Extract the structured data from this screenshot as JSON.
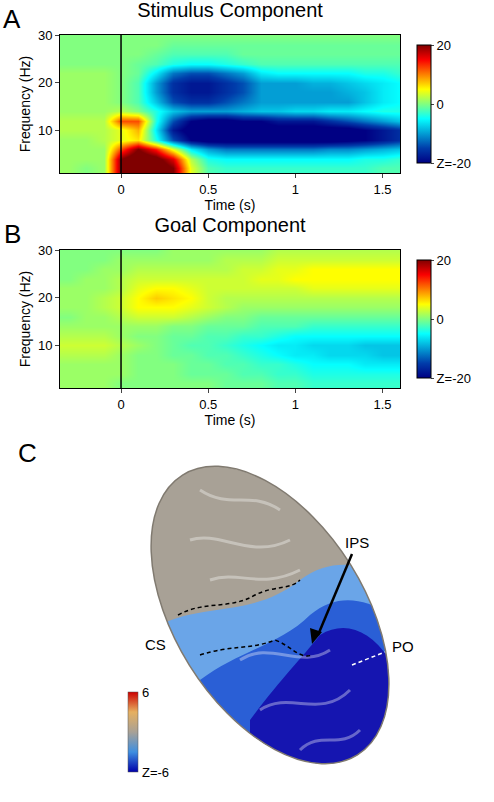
{
  "chart_data": [
    {
      "type": "heatmap",
      "panel": "A",
      "title": "Stimulus Component",
      "x_label": "Time (s)",
      "y_label": "Frequency (Hz)",
      "color": "Jet",
      "event_time": 0,
      "x": [
        -0.3,
        -0.2,
        -0.1,
        0,
        0.1,
        0.2,
        0.3,
        0.4,
        0.5,
        0.6,
        0.7,
        0.8,
        0.9,
        1,
        1.1,
        1.2,
        1.3,
        1.4,
        1.5,
        1.6
      ],
      "y": [
        2,
        4,
        6,
        8,
        10,
        12,
        14,
        16,
        18,
        20,
        22,
        24,
        26,
        28,
        30
      ],
      "z": [
        [
          1,
          0,
          1,
          20,
          24,
          24,
          20,
          4,
          -2,
          -3,
          -3,
          -3,
          -3,
          -3,
          -3,
          -3,
          -3,
          -3,
          -2,
          -2
        ],
        [
          1,
          1,
          1,
          20,
          24,
          22,
          16,
          2,
          -4,
          -5,
          -5,
          -5,
          -5,
          -5,
          -5,
          -5,
          -5,
          -4,
          -4,
          -3
        ],
        [
          1,
          1,
          1,
          12,
          20,
          14,
          4,
          -6,
          -10,
          -12,
          -12,
          -12,
          -12,
          -12,
          -12,
          -11,
          -11,
          -10,
          -9,
          -8
        ],
        [
          1,
          1,
          2,
          4,
          6,
          -4,
          -14,
          -20,
          -22,
          -22,
          -22,
          -22,
          -22,
          -22,
          -22,
          -22,
          -21,
          -20,
          -18,
          -16
        ],
        [
          2,
          2,
          2,
          4,
          8,
          -6,
          -18,
          -22,
          -22,
          -22,
          -22,
          -22,
          -22,
          -22,
          -22,
          -22,
          -22,
          -20,
          -18,
          -16
        ],
        [
          2,
          2,
          2,
          12,
          12,
          -4,
          -14,
          -20,
          -22,
          -22,
          -20,
          -20,
          -18,
          -18,
          -18,
          -16,
          -14,
          -12,
          -10,
          -8
        ],
        [
          1,
          1,
          1,
          2,
          0,
          -4,
          -8,
          -10,
          -10,
          -10,
          -9,
          -8,
          -8,
          -7,
          -7,
          -6,
          -6,
          -5,
          -4,
          -4
        ],
        [
          1,
          1,
          1,
          0,
          -2,
          -8,
          -14,
          -16,
          -16,
          -14,
          -12,
          -10,
          -10,
          -10,
          -10,
          -10,
          -10,
          -8,
          -6,
          -5
        ],
        [
          1,
          1,
          1,
          0,
          -2,
          -10,
          -16,
          -18,
          -18,
          -16,
          -14,
          -10,
          -10,
          -10,
          -10,
          -10,
          -9,
          -8,
          -6,
          -5
        ],
        [
          1,
          1,
          1,
          0,
          -2,
          -10,
          -16,
          -18,
          -18,
          -16,
          -14,
          -10,
          -10,
          -10,
          -9,
          -9,
          -8,
          -7,
          -6,
          -5
        ],
        [
          1,
          1,
          1,
          0,
          -1,
          -6,
          -12,
          -14,
          -14,
          -12,
          -10,
          -6,
          -5,
          -5,
          -5,
          -5,
          -5,
          -4,
          -4,
          -3
        ],
        [
          0,
          0,
          0,
          0,
          -1,
          -2,
          -4,
          -5,
          -5,
          -4,
          -3,
          -2,
          -2,
          -2,
          -2,
          -2,
          -2,
          -2,
          -2,
          -2
        ],
        [
          0,
          0,
          0,
          0,
          0,
          -1,
          -2,
          -2,
          -2,
          -2,
          -1,
          -1,
          -1,
          -1,
          -1,
          -1,
          -1,
          -1,
          -1,
          -1
        ],
        [
          0,
          0,
          0,
          0,
          0,
          0,
          -1,
          -1,
          -1,
          -1,
          -1,
          -1,
          -1,
          -1,
          -1,
          -1,
          -1,
          -1,
          -1,
          -1
        ],
        [
          0,
          0,
          0,
          0,
          0,
          0,
          0,
          0,
          0,
          0,
          0,
          0,
          0,
          0,
          0,
          0,
          0,
          0,
          0,
          0
        ]
      ],
      "xlim": [
        -0.35,
        1.6
      ],
      "ylim": [
        1,
        30
      ],
      "xticks": [
        0,
        0.5,
        1,
        1.5
      ],
      "yticks": [
        10,
        20,
        30
      ],
      "colorbar": {
        "range": [
          -20,
          20
        ],
        "ticks": [
          20,
          0,
          {
            "value": -20,
            "label": "Z=-20"
          }
        ]
      }
    },
    {
      "type": "heatmap",
      "panel": "B",
      "title": "Goal Component",
      "x_label": "Time (s)",
      "y_label": "Frequency (Hz)",
      "color": "Jet",
      "event_time": 0,
      "x": [
        -0.3,
        -0.2,
        -0.1,
        0,
        0.1,
        0.2,
        0.3,
        0.4,
        0.5,
        0.6,
        0.7,
        0.8,
        0.9,
        1,
        1.1,
        1.2,
        1.3,
        1.4,
        1.5,
        1.6
      ],
      "y": [
        2,
        4,
        6,
        8,
        10,
        12,
        14,
        16,
        18,
        20,
        22,
        24,
        26,
        28,
        30
      ],
      "z": [
        [
          1,
          1,
          1,
          0,
          0,
          0,
          0,
          0,
          0,
          -1,
          -1,
          -1,
          -2,
          -2,
          -3,
          -3,
          -3,
          -3,
          -3,
          -3
        ],
        [
          1,
          1,
          1,
          1,
          0,
          0,
          0,
          -1,
          -1,
          -1,
          -2,
          -2,
          -3,
          -3,
          -4,
          -4,
          -4,
          -4,
          -4,
          -4
        ],
        [
          1,
          1,
          1,
          1,
          0,
          0,
          0,
          -1,
          -1,
          -2,
          -2,
          -3,
          -3,
          -4,
          -5,
          -5,
          -5,
          -6,
          -6,
          -6
        ],
        [
          2,
          2,
          2,
          1,
          0,
          0,
          -1,
          -1,
          -2,
          -2,
          -3,
          -4,
          -5,
          -6,
          -6,
          -7,
          -7,
          -7,
          -8,
          -8
        ],
        [
          3,
          3,
          3,
          2,
          1,
          0,
          -1,
          -2,
          -2,
          -3,
          -4,
          -5,
          -6,
          -6,
          -7,
          -7,
          -7,
          -8,
          -8,
          -8
        ],
        [
          2,
          2,
          2,
          1,
          0,
          0,
          -1,
          -1,
          -2,
          -2,
          -3,
          -3,
          -4,
          -5,
          -5,
          -5,
          -5,
          -5,
          -5,
          -5
        ],
        [
          1,
          1,
          1,
          1,
          1,
          1,
          0,
          0,
          -1,
          -1,
          -1,
          -2,
          -2,
          -2,
          -3,
          -3,
          -3,
          -3,
          -3,
          -3
        ],
        [
          0,
          1,
          1,
          2,
          3,
          3,
          3,
          2,
          1,
          0,
          0,
          -1,
          -1,
          -1,
          -1,
          -1,
          -1,
          -1,
          -1,
          -1
        ],
        [
          1,
          1,
          2,
          3,
          5,
          5,
          5,
          4,
          3,
          2,
          1,
          1,
          1,
          1,
          1,
          1,
          1,
          1,
          1,
          1
        ],
        [
          1,
          1,
          2,
          3,
          5,
          7,
          6,
          5,
          3,
          2,
          2,
          2,
          2,
          2,
          2,
          2,
          2,
          2,
          2,
          2
        ],
        [
          1,
          1,
          1,
          2,
          4,
          5,
          5,
          4,
          3,
          3,
          3,
          3,
          3,
          3,
          4,
          4,
          4,
          4,
          4,
          4
        ],
        [
          0,
          1,
          1,
          2,
          3,
          3,
          3,
          3,
          3,
          3,
          3,
          4,
          4,
          5,
          5,
          5,
          5,
          5,
          5,
          5
        ],
        [
          0,
          0,
          1,
          1,
          2,
          2,
          2,
          2,
          2,
          2,
          3,
          3,
          4,
          4,
          5,
          5,
          5,
          5,
          5,
          5
        ],
        [
          0,
          0,
          0,
          1,
          1,
          1,
          1,
          1,
          1,
          2,
          2,
          2,
          3,
          3,
          3,
          3,
          3,
          3,
          3,
          3
        ],
        [
          0,
          0,
          0,
          0,
          0,
          0,
          1,
          1,
          1,
          1,
          1,
          1,
          2,
          2,
          2,
          2,
          2,
          2,
          2,
          2
        ]
      ],
      "xlim": [
        -0.35,
        1.6
      ],
      "ylim": [
        1,
        30
      ],
      "xticks": [
        0,
        0.5,
        1,
        1.5
      ],
      "yticks": [
        10,
        20,
        30
      ],
      "colorbar": {
        "range": [
          -20,
          20
        ],
        "ticks": [
          20,
          0,
          {
            "value": -20,
            "label": "Z=-20"
          }
        ]
      }
    }
  ],
  "brain_map": {
    "panel": "C",
    "labels": [
      "CS",
      "IPS",
      "PO"
    ],
    "colorbar": {
      "range": [
        -6,
        6
      ],
      "ticks": [
        6,
        {
          "value": -6,
          "label": "Z=-6"
        }
      ]
    }
  }
}
